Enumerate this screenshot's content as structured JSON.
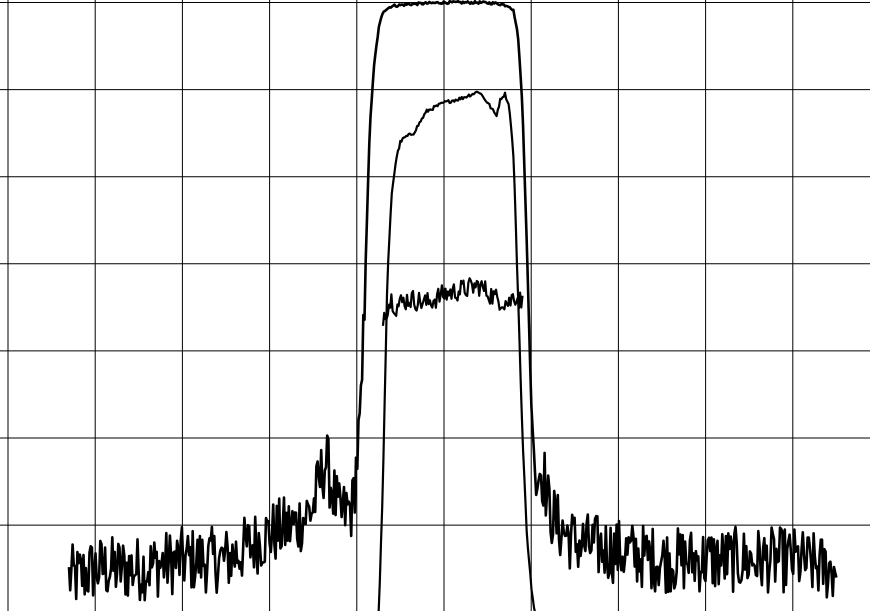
{
  "chart_data": {
    "type": "line",
    "title": "",
    "xlabel": "",
    "ylabel": "",
    "xlim": [
      0,
      10
    ],
    "ylim": [
      0,
      7
    ],
    "grid": true,
    "x_divisions": 10,
    "y_divisions": 7,
    "colors": {
      "background": "#ffffff",
      "grid": "#000000",
      "trace": "#000000"
    },
    "series": [
      {
        "x": [
          0.7,
          0.8,
          1.0,
          1.5,
          2.0,
          2.5,
          3.0,
          3.3,
          3.5,
          3.6,
          3.65,
          3.7,
          3.8,
          3.95,
          4.05,
          4.1,
          4.15,
          4.2,
          4.25,
          4.3,
          4.4,
          4.6,
          4.8,
          5.0,
          5.2,
          5.4,
          5.6,
          5.75,
          5.8,
          5.85,
          5.9,
          5.95,
          6.0,
          6.05,
          6.1,
          6.15,
          6.2,
          6.3,
          6.5,
          7.0,
          7.5,
          8.0,
          8.5,
          9.0,
          9.4,
          9.5
        ],
        "y": [
          0.4,
          0.4,
          0.5,
          0.5,
          0.6,
          0.6,
          0.9,
          1.0,
          1.2,
          1.6,
          1.75,
          1.5,
          1.1,
          1.2,
          2.3,
          4.0,
          5.6,
          6.3,
          6.7,
          6.9,
          6.96,
          6.98,
          6.99,
          7.0,
          7.0,
          7.0,
          6.99,
          6.96,
          6.9,
          6.6,
          5.8,
          4.2,
          2.4,
          1.5,
          1.65,
          1.55,
          1.2,
          1.0,
          0.8,
          0.7,
          0.6,
          0.6,
          0.6,
          0.6,
          0.5,
          0.5
        ]
      },
      {
        "x": [
          4.25,
          4.3,
          4.35,
          4.4,
          4.45,
          4.5,
          4.55,
          4.65,
          4.8,
          5.0,
          5.2,
          5.4,
          5.5,
          5.6,
          5.65,
          5.7,
          5.75,
          5.8,
          5.85,
          5.9,
          5.95,
          6.0,
          6.05,
          6.1
        ],
        "y": [
          -0.1,
          1.5,
          3.8,
          4.8,
          5.2,
          5.4,
          5.45,
          5.5,
          5.75,
          5.85,
          5.9,
          5.98,
          5.85,
          5.7,
          5.9,
          5.95,
          5.8,
          5.2,
          3.6,
          2.0,
          0.9,
          0.3,
          -0.1,
          -0.1
        ]
      },
      {
        "x": [
          4.3,
          4.35,
          4.4,
          4.45,
          4.5,
          4.6,
          4.8,
          5.0,
          5.2,
          5.4,
          5.6,
          5.75,
          5.8,
          5.85,
          5.9
        ],
        "y": [
          3.4,
          3.5,
          3.6,
          3.5,
          3.55,
          3.6,
          3.55,
          3.65,
          3.7,
          3.75,
          3.6,
          3.55,
          3.65,
          3.6,
          3.55
        ]
      }
    ]
  }
}
